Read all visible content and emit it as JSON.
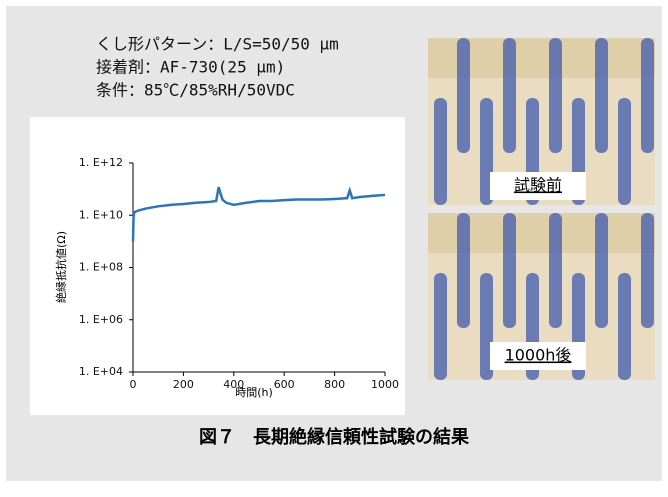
{
  "conditions": [
    "くし形パターン：L/S=50/50 μm",
    "接着剤：AF-730(25 μm)",
    "条件：85℃/85%RH/50VDC"
  ],
  "photo_labels": [
    "試験前",
    "1000h後"
  ],
  "caption": "図７　長期絶縁信頼性試験の結果",
  "chart_data": {
    "type": "line",
    "xlabel": "時間(h)",
    "ylabel": "絶縁抵抗値(Ω)",
    "x": [
      0,
      2,
      5,
      20,
      50,
      100,
      150,
      200,
      250,
      300,
      330,
      340,
      345,
      355,
      370,
      400,
      450,
      500,
      550,
      600,
      650,
      700,
      750,
      800,
      850,
      860,
      870,
      900,
      950,
      1000
    ],
    "series": [
      {
        "color": "#2e75b6",
        "values": [
          1000000000.0,
          8000000000.0,
          13000000000.0,
          15000000000.0,
          18000000000.0,
          22000000000.0,
          25000000000.0,
          27000000000.0,
          30000000000.0,
          32000000000.0,
          35000000000.0,
          120000000000.0,
          80000000000.0,
          40000000000.0,
          30000000000.0,
          25000000000.0,
          30000000000.0,
          35000000000.0,
          35000000000.0,
          38000000000.0,
          40000000000.0,
          40000000000.0,
          40000000000.0,
          42000000000.0,
          45000000000.0,
          90000000000.0,
          45000000000.0,
          50000000000.0,
          55000000000.0,
          60000000000.0
        ]
      }
    ],
    "xlim": [
      0,
      1000
    ],
    "xticks": [
      0,
      200,
      400,
      600,
      800,
      1000
    ],
    "ylim": [
      10000,
      1000000000000
    ],
    "log_scale": true,
    "yticks": [
      {
        "value": 10000,
        "label": "1. E+04"
      },
      {
        "value": 1000000,
        "label": "1. E+06"
      },
      {
        "value": 100000000,
        "label": "1. E+08"
      },
      {
        "value": 10000000000,
        "label": "1. E+10"
      },
      {
        "value": 1000000000000,
        "label": "1. E+12"
      }
    ]
  }
}
